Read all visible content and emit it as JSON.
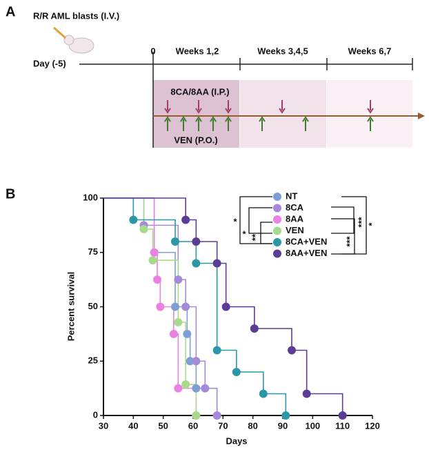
{
  "panel_a": {
    "label": "A",
    "injection": "R/R AML blasts (I.V.)",
    "day_start": "Day (-5)",
    "day_zero": "0",
    "periods": [
      "Weeks 1,2",
      "Weeks 3,4,5",
      "Weeks 6,7"
    ],
    "treatment_ip": "8CA/8AA (I.P.)",
    "treatment_po": "VEN (P.O.)"
  },
  "chart_data": {
    "type": "line",
    "panel_label": "B",
    "x_label": "Days",
    "y_label": "Percent survival",
    "xlim": [
      30,
      120
    ],
    "xticks": [
      30,
      40,
      50,
      60,
      70,
      80,
      90,
      100,
      110,
      120
    ],
    "ylim": [
      0,
      100
    ],
    "yticks": [
      0,
      25,
      50,
      75,
      100
    ],
    "series": [
      {
        "name": "NT",
        "color": "#7e9fd6",
        "x": [
          30,
          47,
          54,
          58,
          59,
          61,
          68
        ],
        "values": [
          100,
          75,
          50,
          37.5,
          25,
          12.5,
          0
        ]
      },
      {
        "name": "8CA",
        "color": "#a58ad8",
        "x": [
          30,
          43.5,
          55,
          57.5,
          61,
          64,
          68
        ],
        "values": [
          100,
          87.5,
          62.5,
          50,
          25,
          12.5,
          0
        ]
      },
      {
        "name": "8AA",
        "color": "#ea82e2",
        "x": [
          30,
          47,
          48,
          49,
          53.5,
          55,
          61
        ],
        "values": [
          100,
          75,
          62.5,
          50,
          37.5,
          12.5,
          0
        ]
      },
      {
        "name": "VEN",
        "color": "#a8da8c",
        "x": [
          30,
          43.5,
          46.5,
          55,
          57.5,
          61
        ],
        "values": [
          100,
          85.7,
          71.4,
          42.9,
          14.3,
          0
        ]
      },
      {
        "name": "8CA+VEN",
        "color": "#2b97a9",
        "x": [
          30,
          40,
          54,
          61,
          68,
          74.5,
          83.5,
          91
        ],
        "values": [
          100,
          90,
          80,
          70,
          30,
          20,
          10,
          0
        ]
      },
      {
        "name": "8AA+VEN",
        "color": "#5c3b97",
        "x": [
          30,
          57.5,
          61,
          68,
          71,
          80.5,
          93,
          98,
          110
        ],
        "values": [
          100,
          90,
          80,
          70,
          50,
          40,
          30,
          10,
          0
        ]
      }
    ],
    "annotations": [
      "*",
      "*",
      "**",
      "***",
      "***",
      "*"
    ]
  }
}
